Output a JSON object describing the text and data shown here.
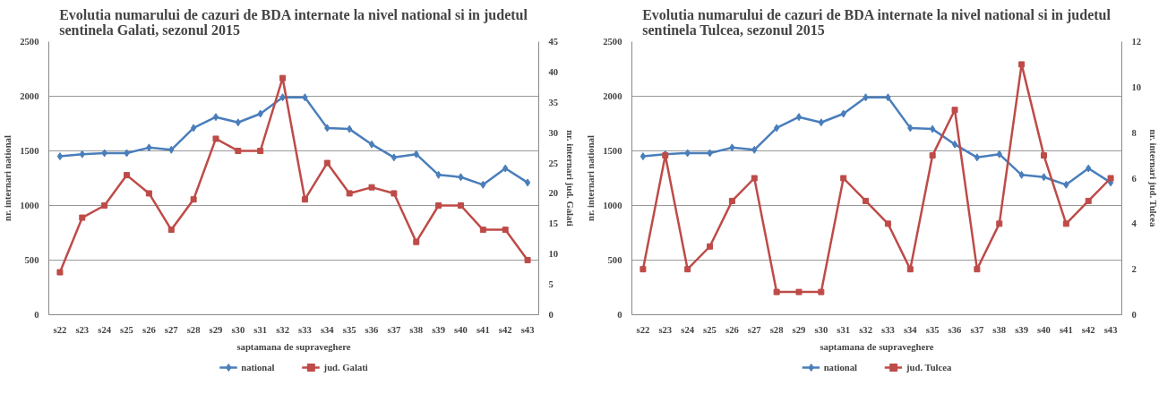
{
  "chart_data": [
    {
      "type": "line",
      "title": "Evolutia numarului de cazuri de BDA internate la nivel national si in judetul sentinela Galati, sezonul 2015",
      "xlabel": "saptamana de supraveghere",
      "ylabel": "nr. internari national",
      "y2label": "nr. internari jud. Galati",
      "categories": [
        "s22",
        "s23",
        "s24",
        "s25",
        "s26",
        "s27",
        "s28",
        "s29",
        "s30",
        "s31",
        "s32",
        "s33",
        "s34",
        "s35",
        "s36",
        "s37",
        "s38",
        "s39",
        "s40",
        "s41",
        "s42",
        "s43"
      ],
      "series": [
        {
          "name": "national",
          "color": "#4a7ebb",
          "marker": "diamond",
          "values": [
            1450,
            1470,
            1480,
            1480,
            1530,
            1510,
            1710,
            1810,
            1760,
            1840,
            1990,
            1990,
            1710,
            1700,
            1560,
            1440,
            1470,
            1280,
            1260,
            1190,
            1340,
            1210
          ]
        },
        {
          "name": "jud. Galati",
          "color": "#be4b48",
          "marker": "square",
          "axis": "y2",
          "values": [
            7,
            16,
            18,
            23,
            20,
            14,
            19,
            29,
            27,
            27,
            39,
            19,
            25,
            20,
            21,
            20,
            12,
            18,
            18,
            14,
            14,
            9
          ]
        }
      ],
      "ylim": [
        0,
        2500
      ],
      "yticks": [
        0,
        500,
        1000,
        1500,
        2000,
        2500
      ],
      "y2lim": [
        0,
        45
      ],
      "y2ticks": [
        0,
        5,
        10,
        15,
        20,
        25,
        30,
        35,
        40,
        45
      ],
      "grid": "y",
      "legend": "bottom"
    },
    {
      "type": "line",
      "title": "Evolutia numarului de cazuri de BDA internate la nivel national si in judetul sentinela Tulcea, sezonul 2015",
      "xlabel": "saptamana de supraveghere",
      "ylabel": "nr. internari national",
      "y2label": "nr. internari jud. Tulcea",
      "categories": [
        "s22",
        "s23",
        "s24",
        "s25",
        "s26",
        "s27",
        "s28",
        "s29",
        "s30",
        "s31",
        "s32",
        "s33",
        "s34",
        "s35",
        "s36",
        "s37",
        "s38",
        "s39",
        "s40",
        "s41",
        "s42",
        "s43"
      ],
      "series": [
        {
          "name": "national",
          "color": "#4a7ebb",
          "marker": "diamond",
          "values": [
            1450,
            1470,
            1480,
            1480,
            1530,
            1510,
            1710,
            1810,
            1760,
            1840,
            1990,
            1990,
            1710,
            1700,
            1560,
            1440,
            1470,
            1280,
            1260,
            1190,
            1340,
            1210
          ]
        },
        {
          "name": "jud. Tulcea",
          "color": "#be4b48",
          "marker": "square",
          "axis": "y2",
          "values": [
            2,
            7,
            2,
            3,
            5,
            6,
            1,
            1,
            1,
            6,
            5,
            4,
            2,
            7,
            9,
            2,
            4,
            11,
            7,
            4,
            5,
            6
          ]
        }
      ],
      "ylim": [
        0,
        2500
      ],
      "yticks": [
        0,
        500,
        1000,
        1500,
        2000,
        2500
      ],
      "y2lim": [
        0,
        12
      ],
      "y2ticks": [
        0,
        2,
        4,
        6,
        8,
        10,
        12
      ],
      "grid": "y",
      "legend": "bottom"
    }
  ]
}
